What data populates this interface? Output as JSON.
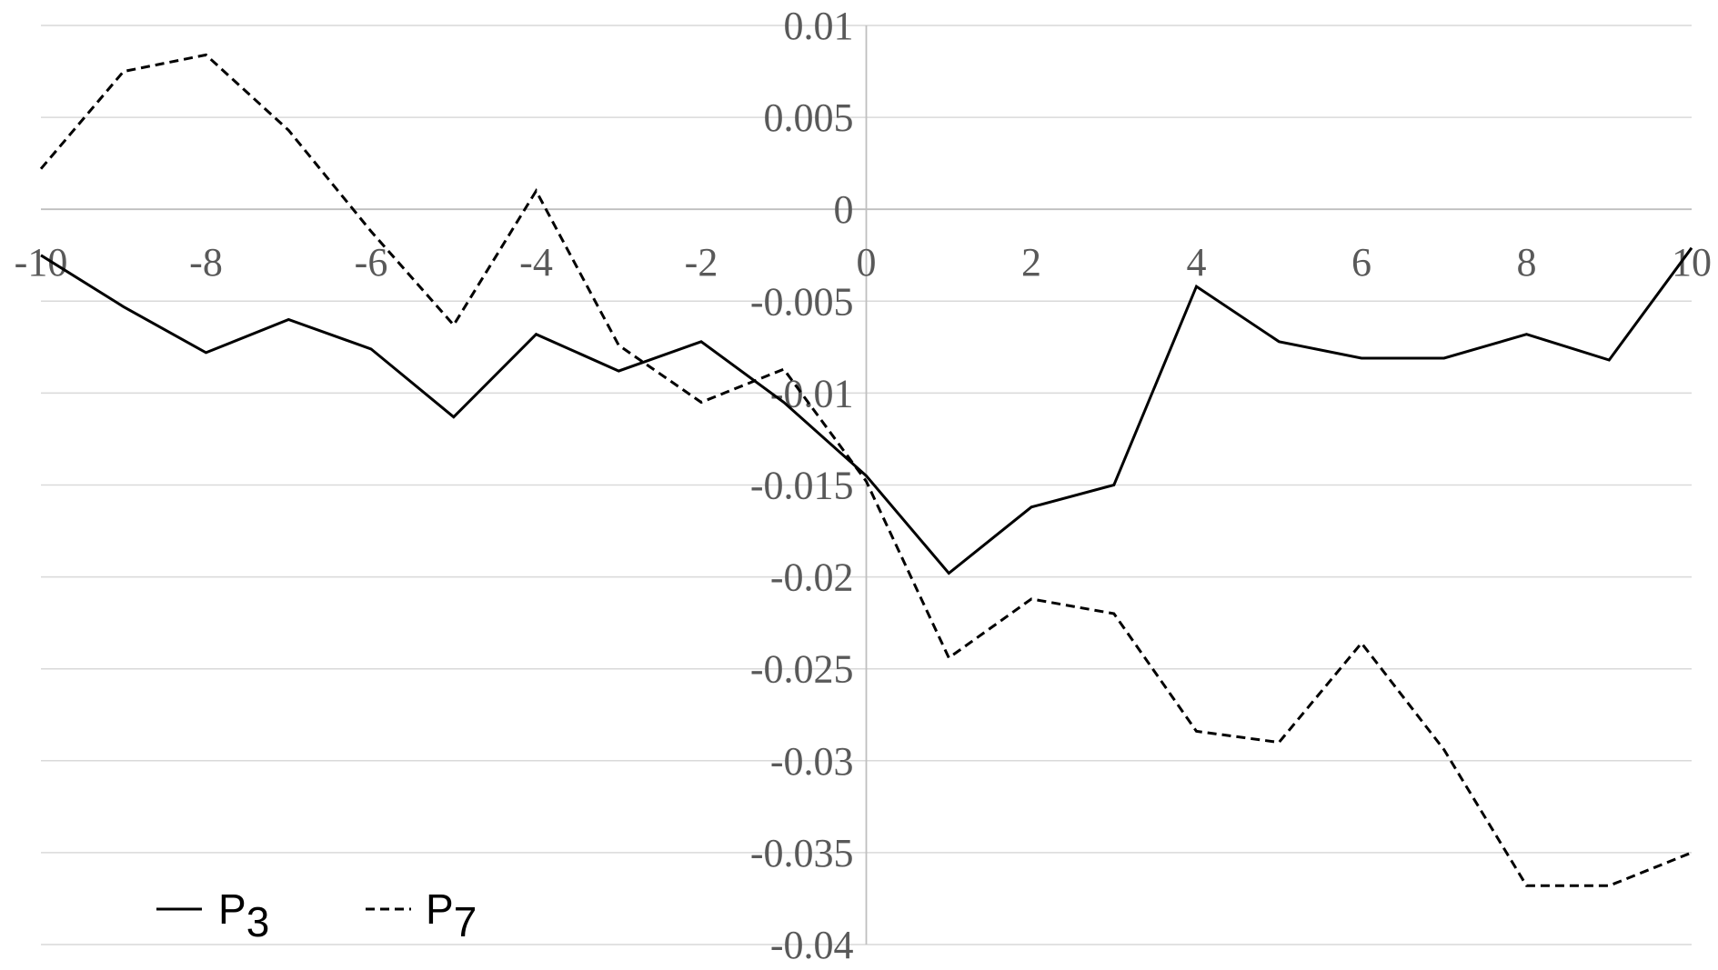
{
  "chart_data": {
    "type": "line",
    "title": "",
    "xlabel": "",
    "ylabel": "",
    "xlim": [
      -10,
      10
    ],
    "ylim": [
      -0.04,
      0.01
    ],
    "x_ticks": [
      -10,
      -8,
      -6,
      -4,
      -2,
      0,
      2,
      4,
      6,
      8,
      10
    ],
    "x_tick_labels": [
      "-10",
      "-8",
      "-6",
      "-4",
      "-2",
      "0",
      "2",
      "4",
      "6",
      "8",
      "10"
    ],
    "y_ticks": [
      0.01,
      0.005,
      0,
      -0.005,
      -0.01,
      -0.015,
      -0.02,
      -0.025,
      -0.03,
      -0.035,
      -0.04
    ],
    "y_tick_labels": [
      "0.01",
      "0.005",
      "0",
      "-0.005",
      "-0.01",
      "-0.015",
      "-0.02",
      "-0.025",
      "-0.03",
      "-0.035",
      "-0.04"
    ],
    "grid": true,
    "legend_position": "bottom-left",
    "x": [
      -10,
      -9,
      -8,
      -7,
      -6,
      -5,
      -4,
      -3,
      -2,
      -1,
      0,
      1,
      2,
      3,
      4,
      5,
      6,
      7,
      8,
      9,
      10
    ],
    "series": [
      {
        "name": "P",
        "name_subscript": "3",
        "style": "solid",
        "color": "#000000",
        "values": [
          -0.0025,
          -0.0053,
          -0.0078,
          -0.006,
          -0.0076,
          -0.0113,
          -0.0068,
          -0.0088,
          -0.0072,
          -0.0105,
          -0.0145,
          -0.0198,
          -0.0162,
          -0.015,
          -0.0042,
          -0.0072,
          -0.0081,
          -0.0081,
          -0.0068,
          -0.0082,
          -0.0021
        ]
      },
      {
        "name": "P",
        "name_subscript": "7",
        "style": "dashed",
        "color": "#000000",
        "values": [
          0.0022,
          0.0075,
          0.0084,
          0.0043,
          -0.0012,
          -0.0063,
          0.001,
          -0.0074,
          -0.0105,
          -0.0087,
          -0.0148,
          -0.0244,
          -0.0212,
          -0.022,
          -0.0284,
          -0.029,
          -0.0236,
          -0.0294,
          -0.0368,
          -0.0368,
          -0.035
        ]
      }
    ]
  }
}
